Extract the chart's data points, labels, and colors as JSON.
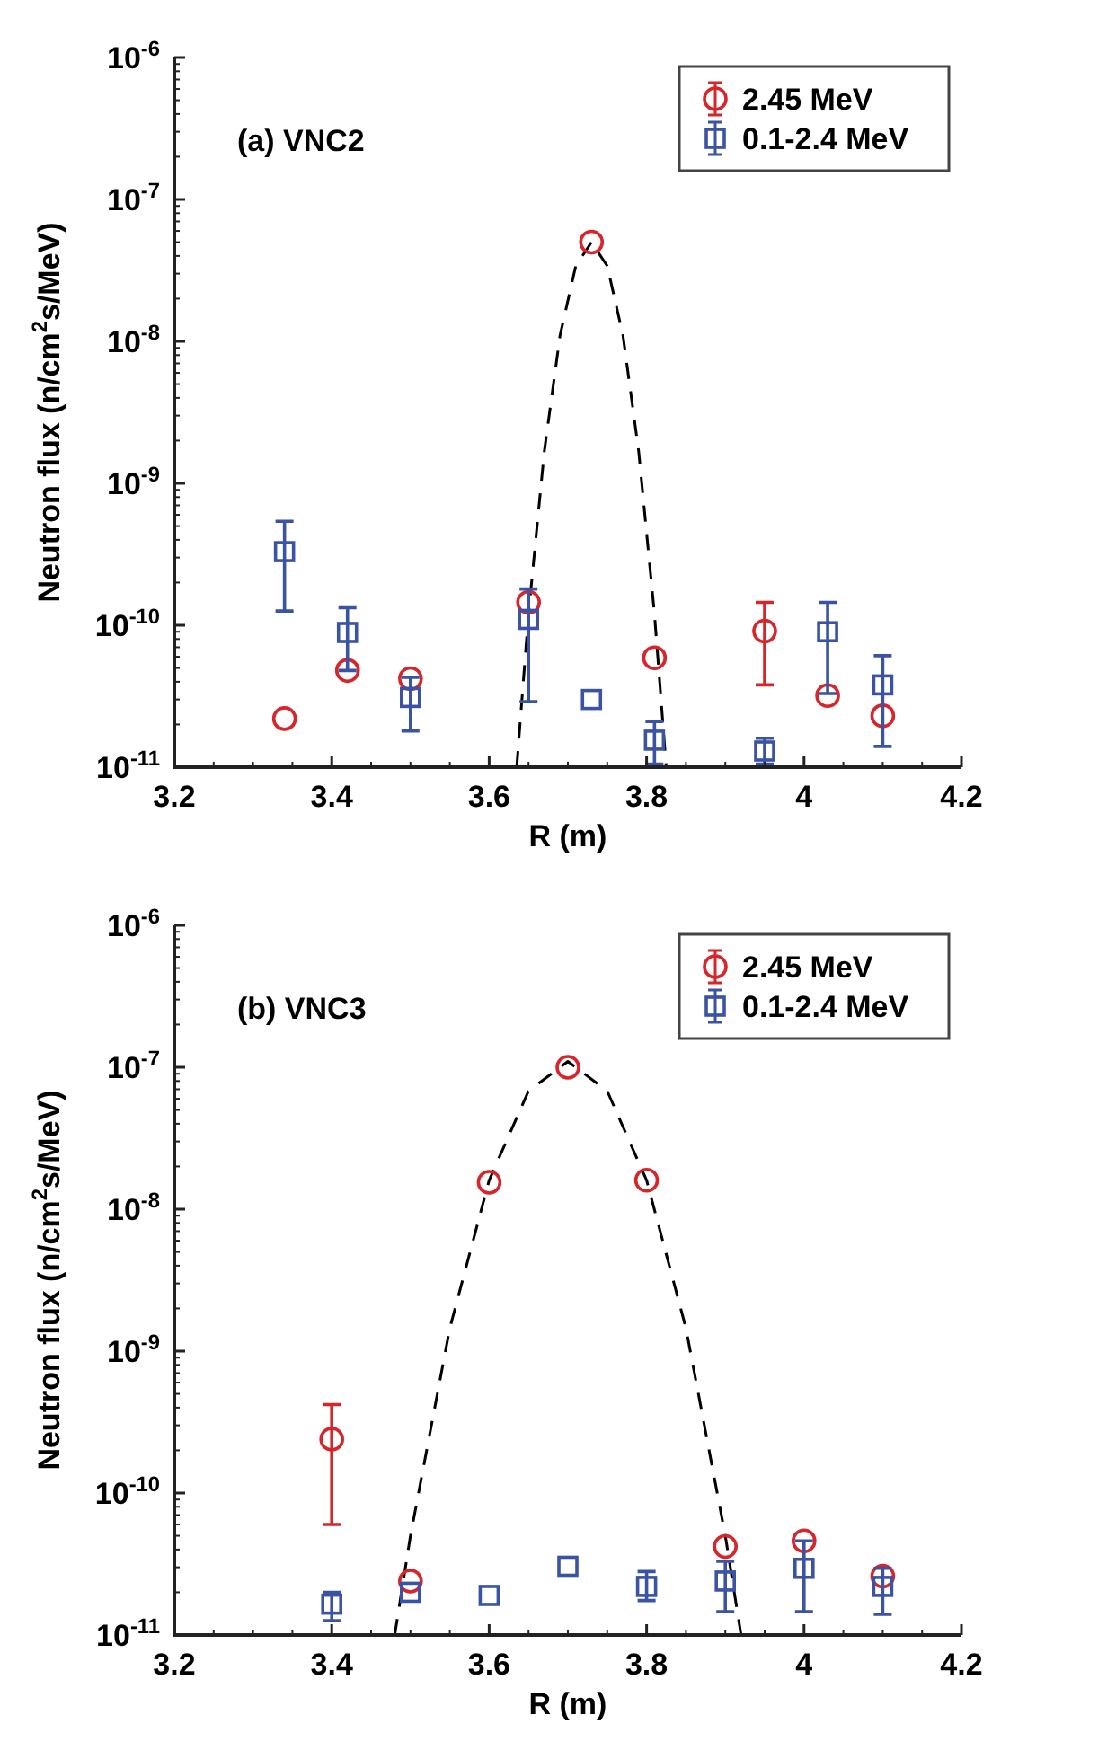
{
  "chart_data": [
    {
      "type": "scatter",
      "annotations": [
        "(a) VNC2"
      ],
      "xlabel": "R (m)",
      "ylabel": "Neutron flux (n/cm$^{2}$s/MeV)",
      "log": "y",
      "legend": "top right",
      "xlim": [
        3.2,
        4.2
      ],
      "xticks": [
        3.2,
        3.4,
        3.6,
        3.8,
        4,
        4.2
      ],
      "ylim": [
        1e-11,
        1e-06
      ],
      "yticks": [
        {
          "value": 1e-11,
          "label": "10$^{-11}$"
        },
        {
          "value": 1e-10,
          "label": "10$^{-10}$"
        },
        {
          "value": 1e-09,
          "label": "10$^{-9}$"
        },
        {
          "value": 1e-08,
          "label": "10$^{-8}$"
        },
        {
          "value": 1e-07,
          "label": "10$^{-7}$"
        },
        {
          "value": 1e-06,
          "label": "10$^{-6}$"
        }
      ],
      "series": [
        {
          "name": "2.45 MeV",
          "color": "#d7262b",
          "marker": "circle",
          "x": [
            3.34,
            3.42,
            3.5,
            3.65,
            3.73,
            3.81,
            3.95,
            4.03,
            4.1
          ],
          "values": [
            2.2e-11,
            4.8e-11,
            4.2e-11,
            1.45e-10,
            5e-08,
            5.9e-11,
            9.1e-11,
            3.2e-11,
            2.3e-11
          ],
          "errors": [
            null,
            null,
            null,
            null,
            null,
            null,
            [
              3.8e-11,
              1.45e-10
            ],
            null,
            null
          ]
        },
        {
          "name": "0.1-2.4 MeV",
          "color": "#3a53a4",
          "marker": "square",
          "x": [
            3.34,
            3.42,
            3.5,
            3.65,
            3.73,
            3.81,
            3.95,
            4.03,
            4.1
          ],
          "values": [
            3.3e-10,
            8.9e-11,
            3.1e-11,
            1.1e-10,
            3e-11,
            1.55e-11,
            1.3e-11,
            9e-11,
            3.8e-11
          ],
          "errors": [
            [
              1.26e-10,
              5.4e-10
            ],
            [
              4.8e-11,
              1.33e-10
            ],
            [
              1.8e-11,
              4.3e-11
            ],
            [
              2.9e-11,
              1.8e-10
            ],
            null,
            [
              1.05e-11,
              2.1e-11
            ],
            [
              1.05e-11,
              1.6e-11
            ],
            [
              3.3e-11,
              1.45e-10
            ],
            [
              1.4e-11,
              6.1e-11
            ]
          ]
        },
        {
          "type": "line",
          "color": "#000000",
          "line_style": "dashed",
          "x": [
            3.635,
            3.65,
            3.67,
            3.69,
            3.71,
            3.73,
            3.75,
            3.77,
            3.79,
            3.81,
            3.825
          ],
          "values": [
            1e-11,
            1.2e-10,
            1.67e-09,
            1.1e-08,
            3.4e-08,
            5e-08,
            3.4e-08,
            1.1e-08,
            1.67e-09,
            1.2e-10,
            1e-11
          ]
        }
      ]
    },
    {
      "type": "scatter",
      "annotations": [
        "(b) VNC3"
      ],
      "xlabel": "R (m)",
      "ylabel": "Neutron flux (n/cm$^{2}$s/MeV)",
      "log": "y",
      "legend": "top right",
      "xlim": [
        3.2,
        4.2
      ],
      "xticks": [
        3.2,
        3.4,
        3.6,
        3.8,
        4,
        4.2
      ],
      "ylim": [
        1e-11,
        1e-06
      ],
      "yticks": [
        {
          "value": 1e-11,
          "label": "10$^{-11}$"
        },
        {
          "value": 1e-10,
          "label": "10$^{-10}$"
        },
        {
          "value": 1e-09,
          "label": "10$^{-9}$"
        },
        {
          "value": 1e-08,
          "label": "10$^{-8}$"
        },
        {
          "value": 1e-07,
          "label": "10$^{-7}$"
        },
        {
          "value": 1e-06,
          "label": "10$^{-6}$"
        }
      ],
      "series": [
        {
          "name": "2.45 MeV",
          "color": "#d7262b",
          "marker": "circle",
          "x": [
            3.4,
            3.5,
            3.6,
            3.7,
            3.8,
            3.9,
            4.0,
            4.1
          ],
          "values": [
            2.4e-10,
            2.4e-11,
            1.55e-08,
            1e-07,
            1.6e-08,
            4.2e-11,
            4.6e-11,
            2.6e-11
          ],
          "errors": [
            [
              6e-11,
              4.2e-10
            ],
            null,
            null,
            null,
            null,
            null,
            null,
            null
          ]
        },
        {
          "name": "0.1-2.4 MeV",
          "color": "#3a53a4",
          "marker": "square",
          "x": [
            3.4,
            3.5,
            3.6,
            3.7,
            3.8,
            3.9,
            4.0,
            4.1
          ],
          "values": [
            1.65e-11,
            2e-11,
            1.9e-11,
            3.05e-11,
            2.2e-11,
            2.4e-11,
            2.95e-11,
            2.2e-11
          ],
          "errors": [
            [
              1.26e-11,
              2e-11
            ],
            null,
            null,
            null,
            [
              1.75e-11,
              2.8e-11
            ],
            [
              1.46e-11,
              3.3e-11
            ],
            [
              1.46e-11,
              4.6e-11
            ],
            [
              1.4e-11,
              2.95e-11
            ]
          ]
        },
        {
          "type": "line",
          "color": "#000000",
          "line_style": "dashed",
          "x": [
            3.48,
            3.5,
            3.55,
            3.6,
            3.65,
            3.7,
            3.75,
            3.8,
            3.85,
            3.9,
            3.92
          ],
          "values": [
            1e-11,
            5e-11,
            1.45e-09,
            1.6e-08,
            6.8e-08,
            1.1e-07,
            6.8e-08,
            1.6e-08,
            1.45e-09,
            5e-11,
            1e-11
          ]
        }
      ]
    }
  ]
}
